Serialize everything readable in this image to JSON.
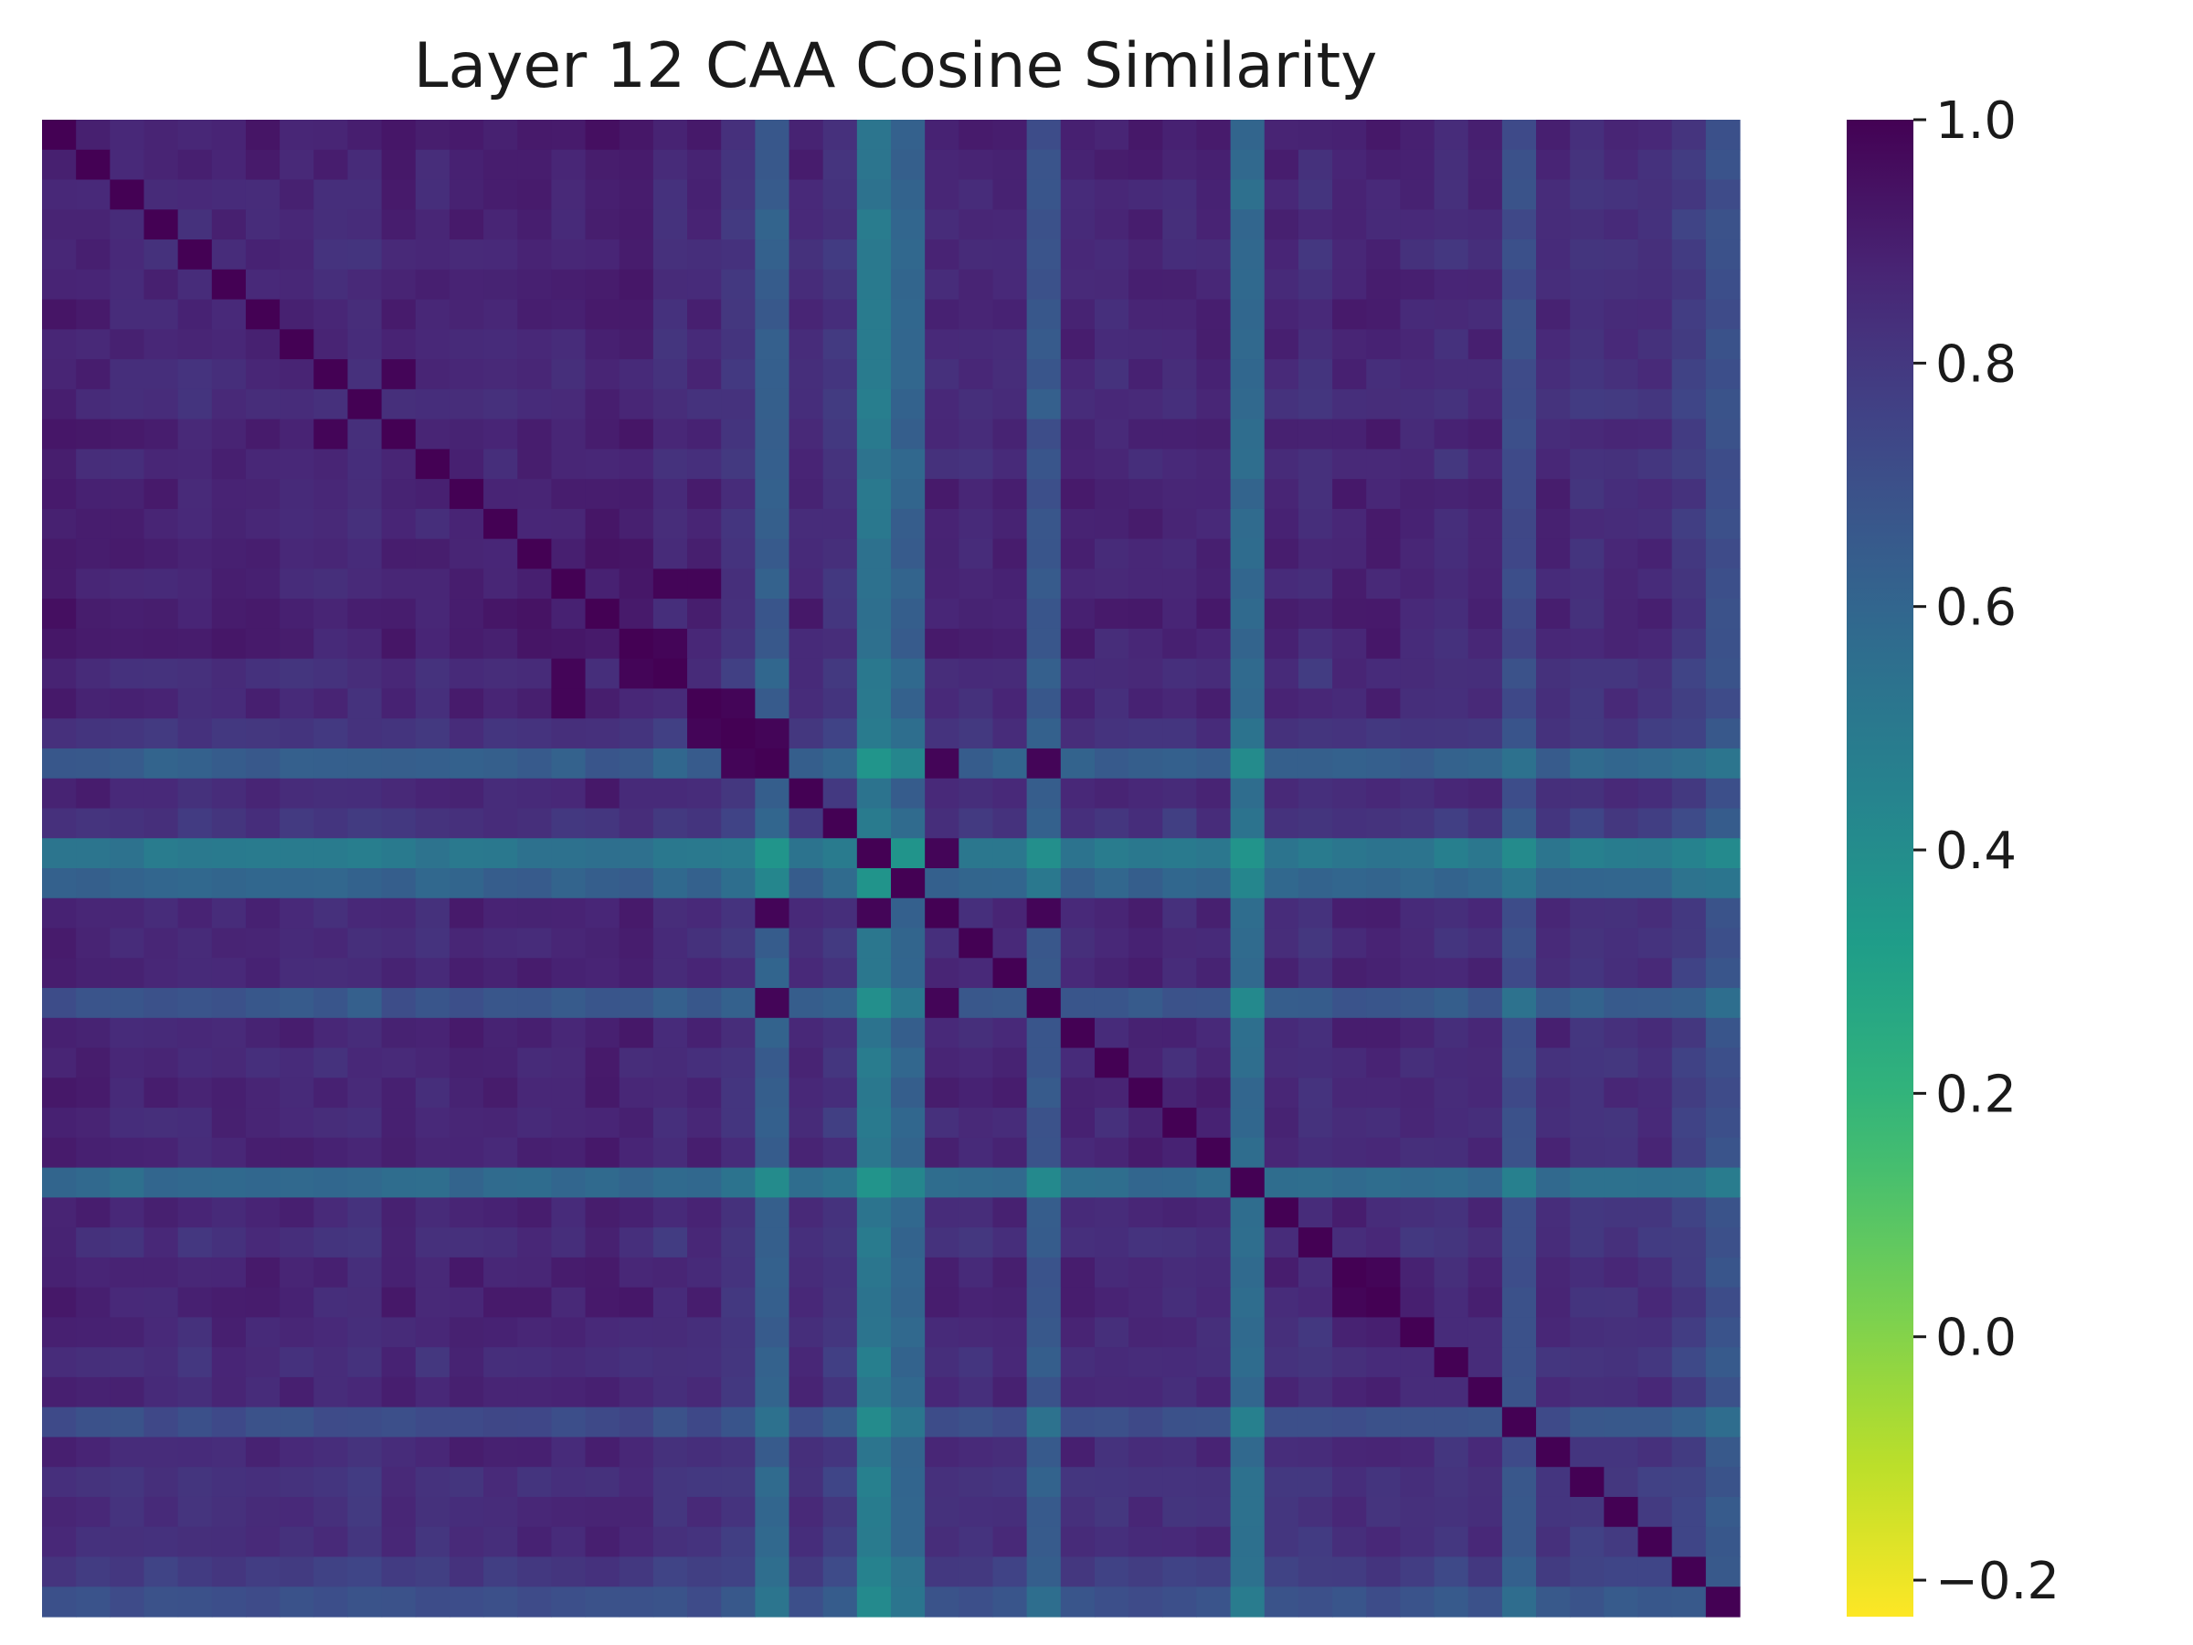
{
  "chart_data": {
    "type": "heatmap",
    "title": "Layer 12 CAA Cosine Similarity",
    "xlabel": "",
    "ylabel": "",
    "n": 50,
    "color_scale": {
      "colormap": "viridis",
      "reversed": true,
      "vmin": -0.23,
      "vmax": 1.0,
      "ticks": [
        1.0,
        0.8,
        0.6,
        0.4,
        0.2,
        0.0,
        -0.2
      ],
      "tick_labels": [
        "1.0",
        "0.8",
        "0.6",
        "0.4",
        "0.2",
        "0.0",
        "−0.2"
      ]
    },
    "grid": false,
    "legend": "colorbar-right",
    "row_profile": [
      0.96,
      0.95,
      0.93,
      0.93,
      0.92,
      0.94,
      0.94,
      0.93,
      0.92,
      0.91,
      0.95,
      0.92,
      0.95,
      0.94,
      0.95,
      0.94,
      0.96,
      0.95,
      0.9,
      0.93,
      0.88,
      0.68,
      0.93,
      0.87,
      0.55,
      0.66,
      0.93,
      0.92,
      0.93,
      0.72,
      0.94,
      0.92,
      0.94,
      0.92,
      0.94,
      0.62,
      0.93,
      0.9,
      0.94,
      0.94,
      0.92,
      0.9,
      0.93,
      0.76,
      0.92,
      0.88,
      0.9,
      0.9,
      0.84,
      0.75
    ],
    "strong_pairs": [
      [
        21,
        26
      ],
      [
        21,
        29
      ],
      [
        24,
        26
      ],
      [
        26,
        29
      ],
      [
        15,
        18
      ],
      [
        15,
        19
      ],
      [
        19,
        20
      ],
      [
        17,
        18
      ],
      [
        20,
        21
      ],
      [
        38,
        39
      ],
      [
        8,
        10
      ]
    ],
    "diagonal": 1.0
  }
}
